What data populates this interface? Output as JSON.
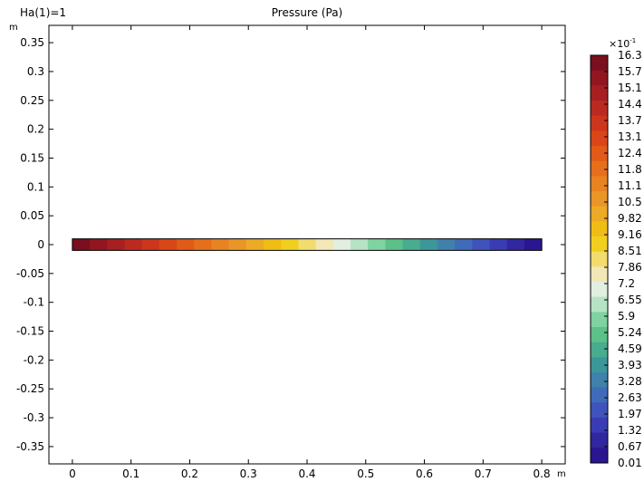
{
  "chart_data": {
    "type": "heatmap",
    "title": "Pressure (Pa)",
    "parameter_label": "Ha(1)=1",
    "x_unit": "m",
    "y_unit": "m",
    "xlim": [
      -0.04,
      0.84
    ],
    "ylim": [
      -0.38,
      0.38
    ],
    "x_ticks": [
      "0",
      "0.1",
      "0.2",
      "0.3",
      "0.4",
      "0.5",
      "0.6",
      "0.7",
      "0.8"
    ],
    "y_ticks": [
      "0.35",
      "0.3",
      "0.25",
      "0.2",
      "0.15",
      "0.1",
      "0.05",
      "0",
      "-0.05",
      "-0.1",
      "-0.15",
      "-0.2",
      "-0.25",
      "-0.3",
      "-0.35"
    ],
    "domain": {
      "x": [
        0,
        0.8
      ],
      "y": [
        -0.01,
        0.01
      ]
    },
    "colorbar": {
      "multiplier": "×10",
      "exponent": "-1",
      "min": 0.01,
      "max": 16.3,
      "labels": [
        "16.3",
        "15.7",
        "15.1",
        "14.4",
        "13.7",
        "13.1",
        "12.4",
        "11.8",
        "11.1",
        "10.5",
        "9.82",
        "9.16",
        "8.51",
        "7.86",
        "7.2",
        "6.55",
        "5.9",
        "5.24",
        "4.59",
        "3.93",
        "3.28",
        "2.63",
        "1.97",
        "1.32",
        "0.67",
        "0.01"
      ],
      "colors": [
        "#7a0f1f",
        "#911620",
        "#a71f21",
        "#bb2a20",
        "#cd361c",
        "#da4617",
        "#e15a17",
        "#e66f1c",
        "#e88321",
        "#ea9626",
        "#edaa26",
        "#efbd15",
        "#f1cf1f",
        "#f2dc6e",
        "#f2e7b6",
        "#e2eedf",
        "#b5e3c4",
        "#7fd3a0",
        "#5cc188",
        "#48ac8f",
        "#3c9799",
        "#3f81ab",
        "#3f6bb8",
        "#3f53ba",
        "#3a3cb4",
        "#31279f",
        "#2a1691"
      ]
    },
    "field_colors": [
      "#7a0f1f",
      "#911620",
      "#a71f21",
      "#bb2a20",
      "#cd361c",
      "#da4617",
      "#e15a17",
      "#e66f1c",
      "#e88321",
      "#ea9626",
      "#edaa26",
      "#efbd15",
      "#f1cf1f",
      "#f2dc6e",
      "#f2e7b6",
      "#e2eedf",
      "#b5e3c4",
      "#7fd3a0",
      "#5cc188",
      "#48ac8f",
      "#3c9799",
      "#3f81ab",
      "#3f6bb8",
      "#3f53ba",
      "#3a3cb4",
      "#31279f",
      "#2a1691"
    ]
  }
}
